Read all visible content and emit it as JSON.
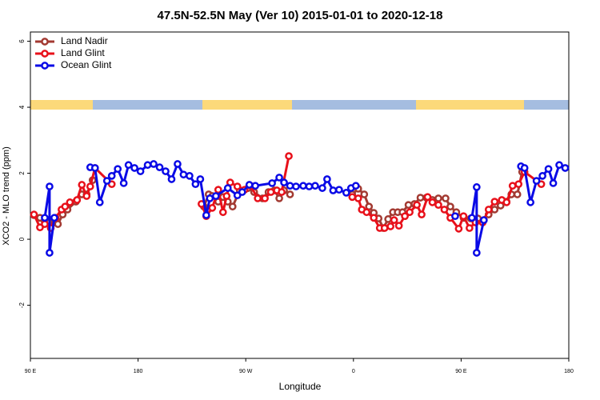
{
  "chart_data": {
    "type": "line",
    "title": "47.5N-52.5N May (Ver 10)   2015-01-01 to 2020-12-18",
    "x_label": "Longitude",
    "y_label": "XCO2 - MLO trend (ppm)",
    "xlim": [
      90,
      540
    ],
    "ylim": [
      -3.61,
      6.28
    ],
    "xticks": [
      {
        "value": 90,
        "label": "90 E"
      },
      {
        "value": 180,
        "label": "180"
      },
      {
        "value": 270,
        "label": "90 W"
      },
      {
        "value": 360,
        "label": "0"
      },
      {
        "value": 450,
        "label": "90 E"
      },
      {
        "value": 540,
        "label": "180"
      }
    ],
    "yticks": [
      6,
      4,
      2,
      0,
      -2
    ],
    "legend": "top-left",
    "series": [
      {
        "name": "Land Nadir",
        "color": "#a33a32",
        "x": [
          93,
          98,
          102,
          106,
          110,
          113,
          117,
          121,
          128,
          133,
          137,
          142,
          160,
          235,
          239,
          242,
          247,
          251,
          255,
          259,
          265,
          272,
          277,
          284,
          289,
          294,
          298,
          302,
          307,
          330,
          359,
          364,
          369,
          373,
          377,
          381,
          385,
          389,
          393,
          397,
          401,
          406,
          411,
          416,
          421,
          426,
          431,
          437,
          441,
          446,
          452,
          458,
          464,
          469,
          473,
          478,
          483,
          488,
          492,
          497,
          501
        ],
        "values": [
          0.73,
          0.65,
          0.53,
          0.51,
          0.51,
          0.46,
          0.75,
          0.9,
          1.14,
          1.36,
          1.36,
          1.79,
          null,
          0.99,
          1.36,
          1.31,
          1.14,
          1.28,
          1.14,
          0.99,
          1.48,
          1.55,
          1.43,
          1.24,
          1.43,
          1.48,
          1.24,
          1.48,
          1.36,
          null,
          1.36,
          1.53,
          1.36,
          0.99,
          0.8,
          0.63,
          0.34,
          0.61,
          0.82,
          0.82,
          0.82,
          1.04,
          1.07,
          1.26,
          1.26,
          1.19,
          1.24,
          1.24,
          0.99,
          0.82,
          0.65,
          0.63,
          0.63,
          0.58,
          0.75,
          0.9,
          1.02,
          1.14,
          1.36,
          1.36,
          2.04
        ]
      },
      {
        "name": "Land Glint",
        "color": "#e8101a",
        "x": [
          93,
          98,
          102,
          107,
          111,
          116,
          119,
          123,
          129,
          133,
          137,
          140,
          144,
          158,
          200,
          233,
          237,
          242,
          247,
          251,
          254,
          257,
          263,
          269,
          274,
          280,
          286,
          291,
          296,
          300,
          306,
          330,
          359,
          364,
          367,
          371,
          377,
          382,
          386,
          391,
          394,
          398,
          403,
          407,
          413,
          417,
          422,
          426,
          431,
          436,
          441,
          448,
          452,
          457,
          462,
          468,
          473,
          478,
          484,
          488,
          493,
          498,
          503,
          517
        ],
        "values": [
          0.75,
          0.36,
          0.46,
          0.34,
          0.65,
          0.9,
          0.99,
          1.12,
          1.19,
          1.65,
          1.31,
          1.6,
          2.16,
          1.67,
          null,
          1.07,
          0.7,
          0.95,
          1.5,
          0.82,
          1.31,
          1.72,
          1.6,
          1.5,
          1.62,
          1.24,
          1.24,
          1.43,
          1.48,
          1.43,
          2.52,
          null,
          1.28,
          1.24,
          0.9,
          0.82,
          0.65,
          0.34,
          0.34,
          0.39,
          0.58,
          0.41,
          0.7,
          0.82,
          1.04,
          0.75,
          1.28,
          1.12,
          1.04,
          0.9,
          0.65,
          0.32,
          0.7,
          0.34,
          0.51,
          0.51,
          0.9,
          1.14,
          1.19,
          1.12,
          1.62,
          1.67,
          2.04,
          1.67
        ]
      },
      {
        "name": "Ocean Glint",
        "color": "#0a0ae6",
        "x": [
          102,
          106,
          106,
          110,
          125,
          140,
          144,
          148,
          154,
          158,
          163,
          168,
          172,
          177,
          182,
          188,
          193,
          198,
          203,
          208,
          213,
          218,
          223,
          228,
          232,
          237,
          240,
          245,
          255,
          263,
          267,
          273,
          278,
          292,
          298,
          302,
          307,
          312,
          318,
          323,
          328,
          334,
          338,
          343,
          348,
          354,
          358,
          362,
          400,
          445,
          452,
          459,
          463,
          463,
          469,
          485,
          500,
          503,
          508,
          513,
          518,
          523,
          527,
          532,
          537
        ],
        "values": [
          0.65,
          1.6,
          -0.41,
          0.65,
          null,
          2.18,
          2.16,
          1.12,
          1.77,
          1.92,
          2.13,
          1.7,
          2.25,
          2.16,
          2.06,
          2.25,
          2.28,
          2.18,
          2.06,
          1.82,
          2.28,
          1.96,
          1.92,
          1.67,
          1.82,
          0.73,
          1.24,
          1.31,
          1.55,
          1.33,
          1.43,
          1.65,
          1.62,
          1.7,
          1.87,
          1.72,
          1.62,
          1.6,
          1.62,
          1.6,
          1.62,
          1.55,
          1.82,
          1.48,
          1.5,
          1.41,
          1.55,
          1.62,
          null,
          0.7,
          null,
          0.65,
          1.58,
          -0.41,
          0.58,
          null,
          2.21,
          2.16,
          1.12,
          1.77,
          1.92,
          2.13,
          1.7,
          2.25,
          2.16
        ]
      }
    ]
  }
}
